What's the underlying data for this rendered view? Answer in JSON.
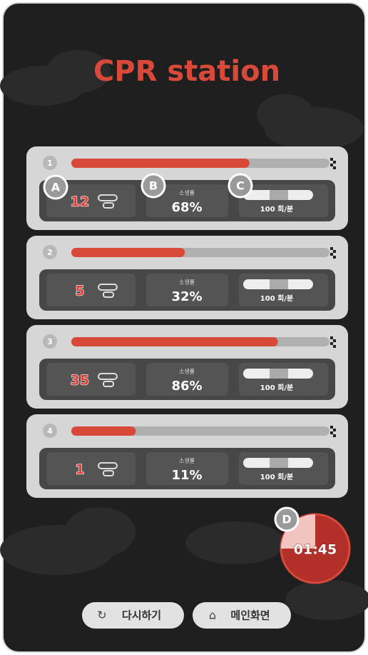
{
  "title": "CPR station",
  "stations": [
    {
      "number": 1,
      "progress": 69,
      "count": 12,
      "rate_label": "소생률",
      "survival": "68%",
      "speed": "100 회/분"
    },
    {
      "number": 2,
      "progress": 44,
      "count": 5,
      "rate_label": "소생률",
      "survival": "32%",
      "speed": "100 회/분"
    },
    {
      "number": 3,
      "progress": 80,
      "count": 35,
      "rate_label": "소생률",
      "survival": "86%",
      "speed": "100 회/분"
    },
    {
      "number": 4,
      "progress": 25,
      "count": 1,
      "rate_label": "소생률",
      "survival": "11%",
      "speed": "100 회/분"
    }
  ],
  "callouts": [
    "A",
    "B",
    "C",
    "D"
  ],
  "timer": {
    "time": "01:45",
    "elapsed": 25
  },
  "buttons": [
    "다시하기",
    "메인화면"
  ]
}
